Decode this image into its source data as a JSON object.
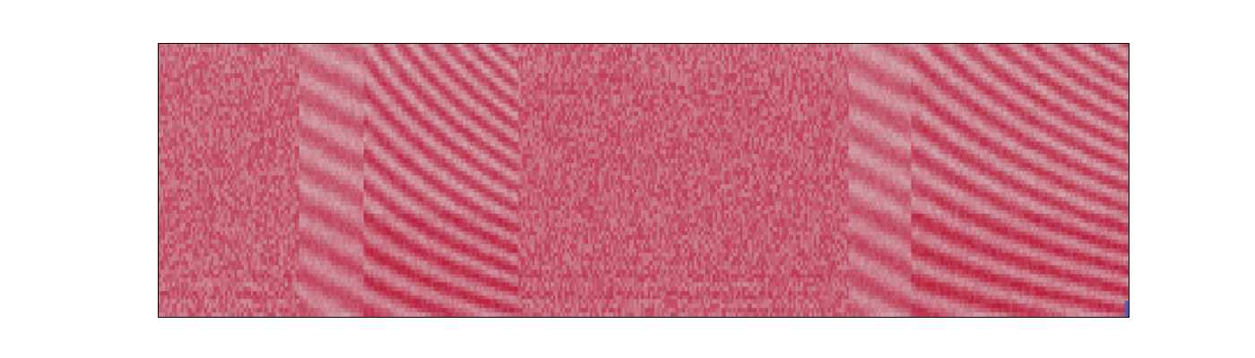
{
  "chart_data": {
    "type": "heatmap",
    "title": "",
    "xlabel": "",
    "ylabel": "",
    "show_axes_ticks": false,
    "grid": false,
    "colormap": "coolwarm",
    "colors": {
      "low": "#3b4cc0",
      "mid": "#dddddd",
      "high": "#b40426",
      "background": "#ffffff",
      "frame": "#000000"
    },
    "value_range": [
      0,
      1
    ],
    "segments": [
      {
        "start": 0.0,
        "end": 0.145,
        "value": 0.78,
        "pattern": "noisy"
      },
      {
        "start": 0.145,
        "end": 0.21,
        "value": 0.74,
        "pattern": "harmonic"
      },
      {
        "start": 0.21,
        "end": 0.37,
        "value": 0.77,
        "pattern": "harmonic-strong"
      },
      {
        "start": 0.37,
        "end": 0.71,
        "value": 0.79,
        "pattern": "noisy"
      },
      {
        "start": 0.71,
        "end": 0.775,
        "value": 0.74,
        "pattern": "harmonic"
      },
      {
        "start": 0.775,
        "end": 1.0,
        "value": 0.77,
        "pattern": "harmonic-strong"
      }
    ],
    "low_value_edge": {
      "position": "bottom-right",
      "value": 0.05
    }
  }
}
